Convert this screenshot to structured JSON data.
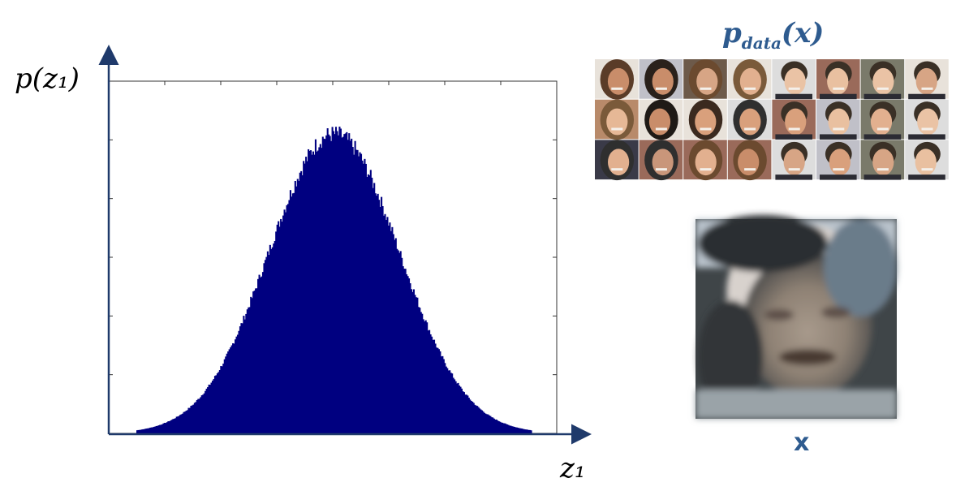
{
  "chart_data": {
    "type": "bar",
    "title": "",
    "xlabel": "z₁",
    "ylabel": "p(z₁)",
    "distribution": "gaussian",
    "bins": 330,
    "mean": 0.5,
    "std": 0.165,
    "x_range": [
      0.0,
      1.0
    ],
    "peak_relative_height": 0.85,
    "grid": false,
    "bar_color": "#000080"
  },
  "labels": {
    "y_axis": "p(z₁)",
    "x_axis": "z₁",
    "data_dist_main": "p",
    "data_dist_sub": "data",
    "data_dist_arg": "(x)",
    "sample_label": "x"
  },
  "colors": {
    "axis": "#1f3a6b",
    "accent": "#2e5b8f",
    "histogram": "#000080"
  },
  "face_grid": {
    "rows": 3,
    "cols": 8,
    "description_icons": "face-photo-icon"
  },
  "sample_image": {
    "icon": "blurry-face-photo-icon"
  }
}
